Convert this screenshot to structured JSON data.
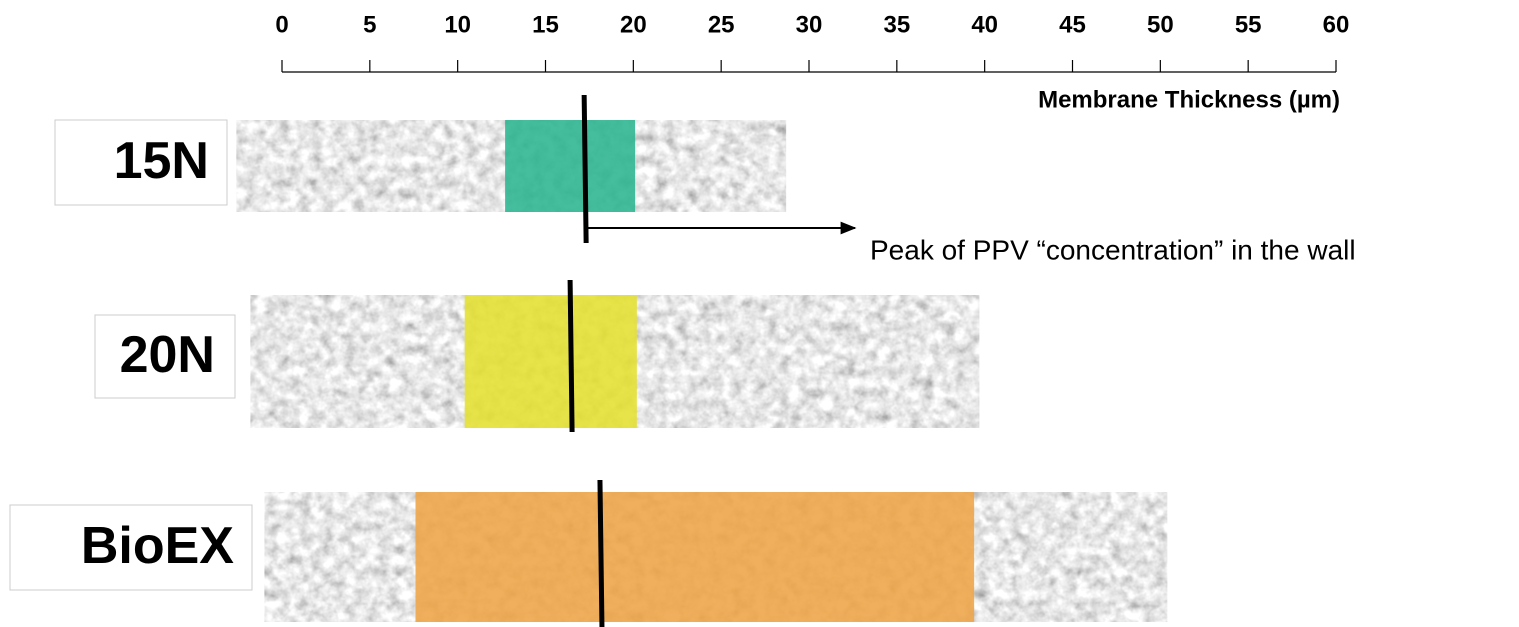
{
  "chart_data": {
    "type": "range",
    "x_label": "Membrane  Thickness (µm)",
    "annotation": "Peak of PPV “concentration” in the wall",
    "xlim": [
      0,
      60
    ],
    "xticks": [
      0,
      5,
      10,
      15,
      20,
      25,
      30,
      35,
      40,
      45,
      50,
      55,
      60
    ],
    "series": [
      {
        "name": "15N",
        "color": "#2bb58f",
        "extent": [
          -2.6,
          28.7
        ],
        "band": [
          12.7,
          20.1
        ],
        "peak": 17.2
      },
      {
        "name": "20N",
        "color": "#e2e030",
        "extent": [
          -1.8,
          39.7
        ],
        "band": [
          10.4,
          20.2
        ],
        "peak": 16.4
      },
      {
        "name": "BioEX",
        "color": "#eda445",
        "extent": [
          -1.0,
          50.4
        ],
        "band": [
          7.6,
          39.4
        ],
        "peak": 18.1
      }
    ]
  }
}
